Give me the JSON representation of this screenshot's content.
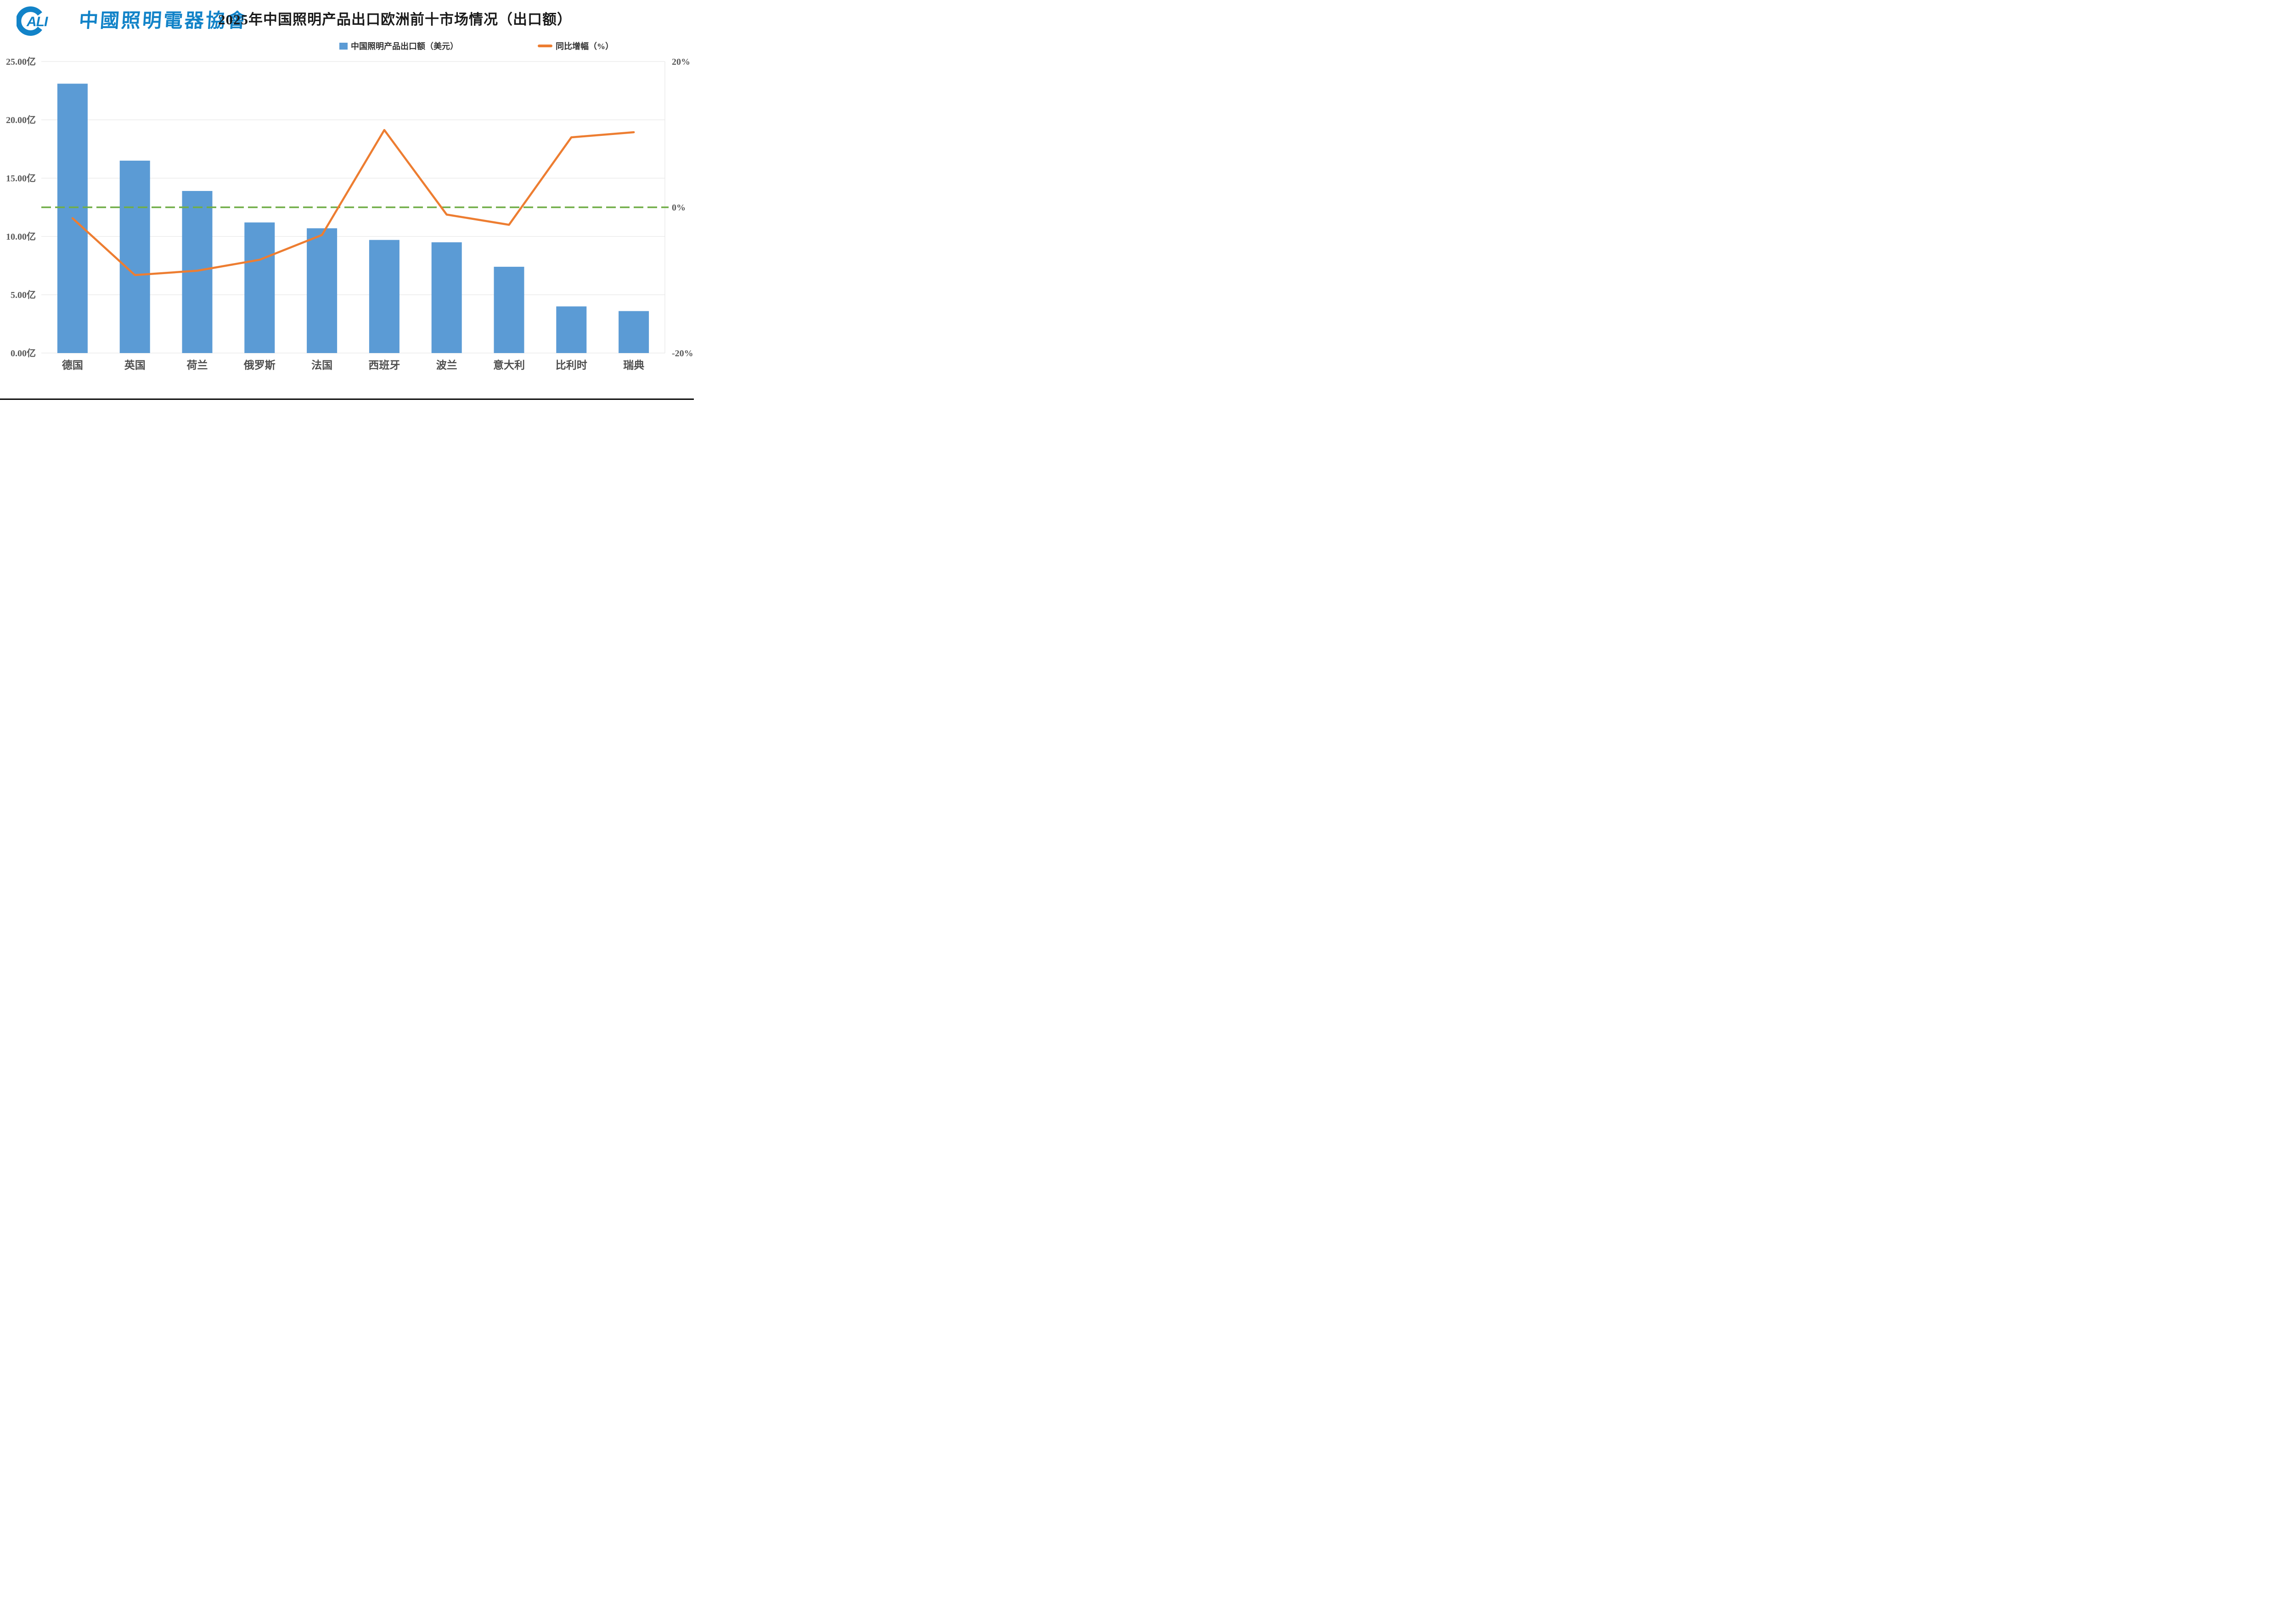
{
  "logo": {
    "abbr": "ALI",
    "name_cn": "中國照明電器協會",
    "color": "#1283c8"
  },
  "title": "2025年中国照明产品出口欧洲前十市场情况（出口额）",
  "legend": {
    "items": [
      {
        "label": "中国照明产品出口额（美元）",
        "marker": "square",
        "color": "#5B9BD5"
      },
      {
        "label": "同比增幅（%）",
        "marker": "line",
        "color": "#ED7D31"
      }
    ]
  },
  "chart_data": {
    "type": "bar",
    "title": "2025年中国照明产品出口欧洲前十市场情况（出口额）",
    "categories": [
      "德国",
      "英国",
      "荷兰",
      "俄罗斯",
      "法国",
      "西班牙",
      "波兰",
      "意大利",
      "比利时",
      "瑞典"
    ],
    "series": [
      {
        "name": "中国照明产品出口额（美元）",
        "type": "bar",
        "axis": "left",
        "unit": "亿美元",
        "color": "#5B9BD5",
        "values": [
          23.1,
          16.5,
          13.9,
          11.2,
          10.7,
          9.7,
          9.5,
          7.4,
          4.0,
          3.6
        ]
      },
      {
        "name": "同比增幅（%）",
        "type": "line",
        "axis": "right",
        "unit": "%",
        "color": "#ED7D31",
        "values": [
          -1.5,
          -9.3,
          -8.7,
          -7.2,
          -3.8,
          10.6,
          -1.0,
          -2.4,
          9.6,
          10.3
        ]
      }
    ],
    "left_axis": {
      "min": 0,
      "max": 25,
      "tick_step": 5,
      "tick_labels": [
        "25.00亿",
        "20.00亿",
        "15.00亿",
        "10.00亿",
        "5.00亿",
        "0.00亿"
      ],
      "tick_values": [
        25,
        20,
        15,
        10,
        5,
        0
      ]
    },
    "right_axis": {
      "min": -20,
      "max": 20,
      "ticks": [
        {
          "label": "20%",
          "value": 20
        },
        {
          "label": "0%",
          "value": 0
        },
        {
          "label": "-20%",
          "value": -20
        }
      ]
    },
    "zero_line": {
      "axis": "right",
      "value": 0,
      "style": "dashed",
      "color": "#70AD47"
    },
    "grid": true,
    "legend_position": "top",
    "colors": {
      "grid": "#E2E2E2",
      "axis_text": "#595959",
      "category_text": "#4d4d4d",
      "plot_border": "#E2E2E2",
      "bottom_rule": "#0a0a0a"
    }
  }
}
